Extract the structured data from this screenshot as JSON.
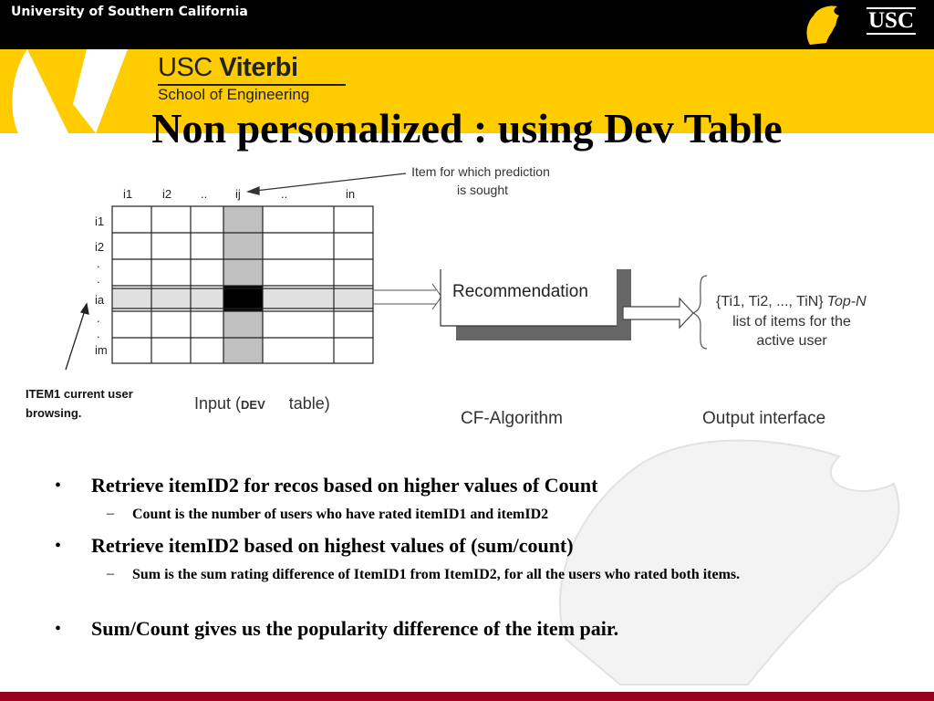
{
  "header": {
    "university": "University of Southern California",
    "logo_text": "USC",
    "school_brand": "USC",
    "school_brand_bold": "Viterbi",
    "school_sub": "School of Engineering"
  },
  "title": "Non personalized : using Dev Table",
  "diagram": {
    "col_labels": [
      "i1",
      "i2",
      "..",
      "ij",
      "..",
      "in"
    ],
    "row_labels": [
      "i1",
      "i2",
      ".",
      ".",
      "ia",
      ".",
      ".",
      "im"
    ],
    "annotation_line1": "Item for which prediction",
    "annotation_line2": "is sought",
    "item_note_line1": "ITEM1 current user",
    "item_note_line2": "browsing.",
    "input_label_pre": "Input (",
    "input_label_dev": "DEV",
    "input_label_post": "table)",
    "box_label": "Recommendation",
    "output_line1": "{Ti1, Ti2, ..., TiN}",
    "output_topn": "Top-N",
    "output_line2": "list of items for the",
    "output_line3": "active user",
    "algo_label": "CF-Algorithm",
    "output_label": "Output interface"
  },
  "bullets": [
    {
      "text": "Retrieve itemID2 for recos based on higher values of Count",
      "sub": "Count is the number of users who have rated itemID1 and itemID2"
    },
    {
      "text": "Retrieve itemID2 based on highest values of (sum/count)",
      "sub": "Sum is the sum rating difference of ItemID1 from ItemID2, for all the users who rated both items."
    },
    {
      "text": "Sum/Count gives us the popularity difference of the item pair."
    }
  ],
  "colors": {
    "usc_gold": "#ffcc00",
    "usc_cardinal": "#990022"
  }
}
